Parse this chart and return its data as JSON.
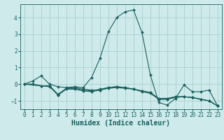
{
  "title": "",
  "xlabel": "Humidex (Indice chaleur)",
  "ylabel": "",
  "xlim": [
    -0.5,
    23.5
  ],
  "ylim": [
    -1.5,
    4.8
  ],
  "bg_color": "#ceeaea",
  "grid_color": "#aacfcf",
  "line_color": "#1a5f5f",
  "lines": [
    {
      "x": [
        0,
        1,
        2,
        3,
        4,
        5,
        6,
        7,
        8,
        9,
        10,
        11,
        12,
        13,
        14,
        15,
        16,
        17,
        18,
        19,
        20,
        21,
        22,
        23
      ],
      "y": [
        0.0,
        0.2,
        0.5,
        0.0,
        -0.15,
        -0.2,
        -0.15,
        -0.2,
        0.4,
        1.55,
        3.15,
        4.0,
        4.35,
        4.45,
        3.1,
        0.55,
        -1.1,
        -1.25,
        -0.85,
        -0.05,
        -0.45,
        -0.45,
        -0.35,
        -1.3
      ]
    },
    {
      "x": [
        0,
        1,
        2,
        3,
        4,
        5,
        6,
        7,
        8,
        9,
        10,
        11,
        12,
        13,
        14,
        15,
        16,
        17,
        18,
        19,
        20,
        21,
        22,
        23
      ],
      "y": [
        0.0,
        0.0,
        -0.1,
        -0.15,
        -0.65,
        -0.25,
        -0.25,
        -0.35,
        -0.4,
        -0.3,
        -0.2,
        -0.15,
        -0.2,
        -0.3,
        -0.4,
        -0.5,
        -0.85,
        -0.85,
        -0.75,
        -0.75,
        -0.8,
        -0.9,
        -1.0,
        -1.3
      ]
    },
    {
      "x": [
        0,
        1,
        2,
        3,
        4,
        5,
        6,
        7,
        8,
        9,
        10,
        11,
        12,
        13,
        14,
        15,
        16,
        17,
        18,
        19,
        20,
        21,
        22,
        23
      ],
      "y": [
        0.0,
        0.0,
        -0.1,
        -0.1,
        -0.65,
        -0.3,
        -0.3,
        -0.4,
        -0.45,
        -0.35,
        -0.25,
        -0.2,
        -0.25,
        -0.3,
        -0.45,
        -0.55,
        -0.9,
        -0.9,
        -0.8,
        -0.75,
        -0.8,
        -0.9,
        -1.0,
        -1.3
      ]
    },
    {
      "x": [
        0,
        2,
        3,
        4,
        5,
        6,
        7,
        8,
        9,
        10,
        11,
        12,
        13,
        14,
        15,
        16,
        17,
        18,
        19,
        20,
        21,
        22,
        23
      ],
      "y": [
        0.0,
        -0.1,
        -0.1,
        -0.6,
        -0.25,
        -0.2,
        -0.3,
        -0.35,
        -0.35,
        -0.2,
        -0.15,
        -0.2,
        -0.3,
        -0.4,
        -0.5,
        -0.9,
        -0.9,
        -0.75,
        -0.75,
        -0.8,
        -0.9,
        -1.0,
        -1.3
      ]
    }
  ],
  "xticks": [
    0,
    1,
    2,
    3,
    4,
    5,
    6,
    7,
    8,
    9,
    10,
    11,
    12,
    13,
    14,
    15,
    16,
    17,
    18,
    19,
    20,
    21,
    22,
    23
  ],
  "yticks": [
    -1,
    0,
    1,
    2,
    3,
    4
  ],
  "tick_fontsize": 5.5,
  "xlabel_fontsize": 7.0,
  "marker_size": 2.0,
  "line_width": 0.8
}
